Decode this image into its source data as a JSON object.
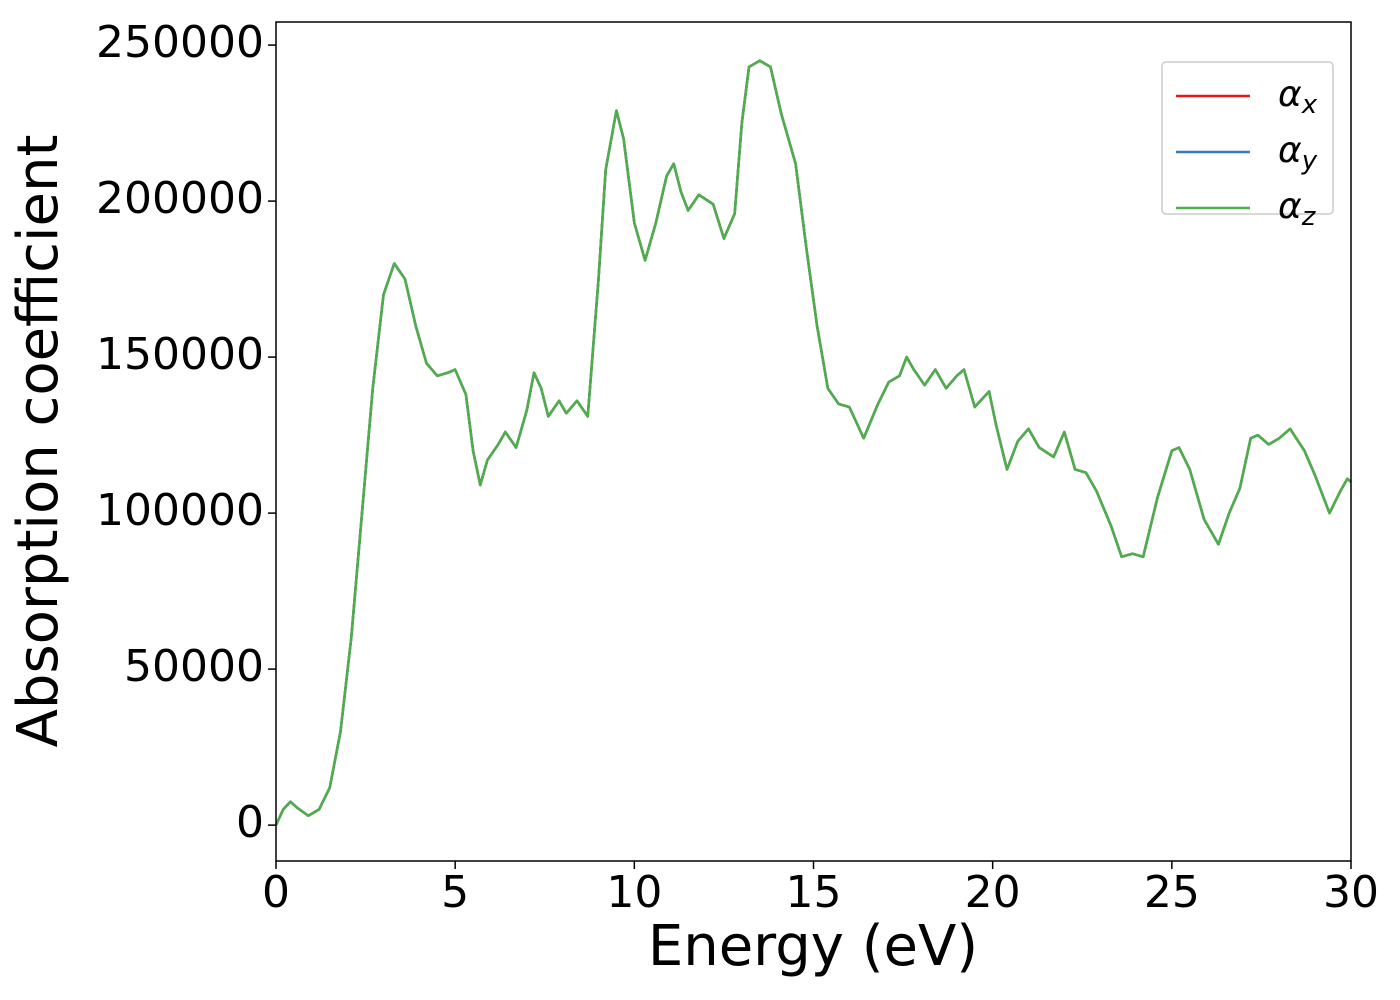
{
  "chart_data": {
    "type": "line",
    "xlabel": "Energy (eV)",
    "ylabel": "Absorption coefficient",
    "x": [
      0,
      0.2,
      0.4,
      0.6,
      0.9,
      1.2,
      1.5,
      1.8,
      2.1,
      2.4,
      2.7,
      3.0,
      3.3,
      3.6,
      3.9,
      4.2,
      4.5,
      4.8,
      5.0,
      5.3,
      5.5,
      5.7,
      5.9,
      6.2,
      6.4,
      6.7,
      7.0,
      7.2,
      7.4,
      7.6,
      7.9,
      8.1,
      8.4,
      8.7,
      9.0,
      9.2,
      9.5,
      9.7,
      10.0,
      10.3,
      10.6,
      10.9,
      11.1,
      11.3,
      11.5,
      11.8,
      12.2,
      12.5,
      12.8,
      13.0,
      13.2,
      13.5,
      13.8,
      14.1,
      14.5,
      14.8,
      15.1,
      15.4,
      15.7,
      16.0,
      16.4,
      16.8,
      17.1,
      17.4,
      17.6,
      17.8,
      18.1,
      18.4,
      18.7,
      19.0,
      19.2,
      19.5,
      19.9,
      20.1,
      20.4,
      20.7,
      21.0,
      21.3,
      21.7,
      22.0,
      22.3,
      22.6,
      22.9,
      23.3,
      23.6,
      23.9,
      24.2,
      24.6,
      25.0,
      25.2,
      25.5,
      25.9,
      26.3,
      26.6,
      26.9,
      27.2,
      27.4,
      27.7,
      28.0,
      28.3,
      28.7,
      29.0,
      29.4,
      29.7,
      29.9,
      30.0
    ],
    "series": [
      {
        "name": "αx",
        "color": "#e41a1c",
        "values": [
          0,
          5000,
          7500,
          5500,
          3000,
          5000,
          12000,
          30000,
          60000,
          100000,
          140000,
          170000,
          180000,
          175000,
          160000,
          148000,
          144000,
          145000,
          146000,
          138000,
          120000,
          109000,
          117000,
          122000,
          126000,
          121000,
          133000,
          145000,
          140000,
          131000,
          136000,
          132000,
          136000,
          131000,
          175000,
          210000,
          229000,
          220000,
          193000,
          181000,
          193000,
          208000,
          212000,
          203000,
          197000,
          202000,
          199000,
          188000,
          196000,
          225000,
          243000,
          245000,
          243000,
          228000,
          212000,
          185000,
          160000,
          140000,
          135000,
          134000,
          124000,
          135000,
          142000,
          144000,
          150000,
          146000,
          141000,
          146000,
          140000,
          144000,
          146000,
          134000,
          139000,
          128000,
          114000,
          123000,
          127000,
          121000,
          118000,
          126000,
          114000,
          113000,
          107000,
          96000,
          86000,
          87000,
          86000,
          105000,
          120000,
          121000,
          114000,
          98000,
          90000,
          100000,
          108000,
          124000,
          125000,
          122000,
          124000,
          127000,
          120000,
          112000,
          100000,
          107000,
          111000,
          110000
        ]
      },
      {
        "name": "αy",
        "color": "#377eb8",
        "values": [
          0,
          5000,
          7500,
          5500,
          3000,
          5000,
          12000,
          30000,
          60000,
          100000,
          140000,
          170000,
          180000,
          175000,
          160000,
          148000,
          144000,
          145000,
          146000,
          138000,
          120000,
          109000,
          117000,
          122000,
          126000,
          121000,
          133000,
          145000,
          140000,
          131000,
          136000,
          132000,
          136000,
          131000,
          175000,
          210000,
          229000,
          220000,
          193000,
          181000,
          193000,
          208000,
          212000,
          203000,
          197000,
          202000,
          199000,
          188000,
          196000,
          225000,
          243000,
          245000,
          243000,
          228000,
          212000,
          185000,
          160000,
          140000,
          135000,
          134000,
          124000,
          135000,
          142000,
          144000,
          150000,
          146000,
          141000,
          146000,
          140000,
          144000,
          146000,
          134000,
          139000,
          128000,
          114000,
          123000,
          127000,
          121000,
          118000,
          126000,
          114000,
          113000,
          107000,
          96000,
          86000,
          87000,
          86000,
          105000,
          120000,
          121000,
          114000,
          98000,
          90000,
          100000,
          108000,
          124000,
          125000,
          122000,
          124000,
          127000,
          120000,
          112000,
          100000,
          107000,
          111000,
          110000
        ]
      },
      {
        "name": "αz",
        "color": "#4daf4a",
        "values": [
          0,
          5000,
          7500,
          5500,
          3000,
          5000,
          12000,
          30000,
          60000,
          100000,
          140000,
          170000,
          180000,
          175000,
          160000,
          148000,
          144000,
          145000,
          146000,
          138000,
          120000,
          109000,
          117000,
          122000,
          126000,
          121000,
          133000,
          145000,
          140000,
          131000,
          136000,
          132000,
          136000,
          131000,
          175000,
          210000,
          229000,
          220000,
          193000,
          181000,
          193000,
          208000,
          212000,
          203000,
          197000,
          202000,
          199000,
          188000,
          196000,
          225000,
          243000,
          245000,
          243000,
          228000,
          212000,
          185000,
          160000,
          140000,
          135000,
          134000,
          124000,
          135000,
          142000,
          144000,
          150000,
          146000,
          141000,
          146000,
          140000,
          144000,
          146000,
          134000,
          139000,
          128000,
          114000,
          123000,
          127000,
          121000,
          118000,
          126000,
          114000,
          113000,
          107000,
          96000,
          86000,
          87000,
          86000,
          105000,
          120000,
          121000,
          114000,
          98000,
          90000,
          100000,
          108000,
          124000,
          125000,
          122000,
          124000,
          127000,
          120000,
          112000,
          100000,
          107000,
          111000,
          110000
        ]
      }
    ],
    "xlim": [
      0,
      30
    ],
    "xticks": [
      0,
      5,
      10,
      15,
      20,
      25,
      30
    ],
    "ylim": [
      -11500,
      257400
    ],
    "yticks": [
      0,
      50000,
      100000,
      150000,
      200000,
      250000
    ],
    "grid": false,
    "legend": "upper right"
  }
}
